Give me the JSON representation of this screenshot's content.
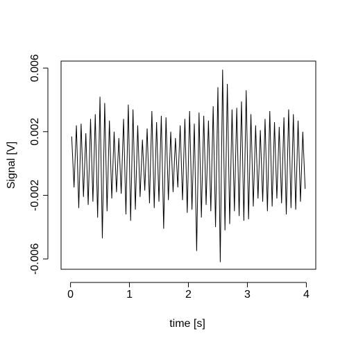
{
  "chart_data": {
    "type": "line",
    "xlabel": "time [s]",
    "ylabel": "Signal [V]",
    "x": [
      0.02,
      0.06,
      0.1,
      0.14,
      0.18,
      0.22,
      0.26,
      0.3,
      0.34,
      0.38,
      0.42,
      0.46,
      0.5,
      0.54,
      0.58,
      0.62,
      0.66,
      0.7,
      0.74,
      0.78,
      0.82,
      0.86,
      0.9,
      0.94,
      0.98,
      1.02,
      1.06,
      1.1,
      1.14,
      1.18,
      1.22,
      1.26,
      1.3,
      1.34,
      1.38,
      1.42,
      1.46,
      1.5,
      1.54,
      1.58,
      1.62,
      1.66,
      1.7,
      1.74,
      1.78,
      1.82,
      1.86,
      1.9,
      1.94,
      1.98,
      2.02,
      2.06,
      2.1,
      2.14,
      2.18,
      2.22,
      2.26,
      2.3,
      2.34,
      2.38,
      2.42,
      2.46,
      2.5,
      2.54,
      2.58,
      2.62,
      2.66,
      2.7,
      2.74,
      2.78,
      2.82,
      2.86,
      2.9,
      2.94,
      2.98,
      3.02,
      3.06,
      3.1,
      3.14,
      3.18,
      3.22,
      3.26,
      3.3,
      3.34,
      3.38,
      3.42,
      3.46,
      3.5,
      3.54,
      3.58,
      3.62,
      3.66,
      3.7,
      3.74,
      3.78,
      3.82,
      3.86,
      3.9,
      3.94,
      3.98
    ],
    "values": [
      0.0017,
      -0.0015,
      0.0024,
      -0.0028,
      0.0025,
      -0.0021,
      0.0019,
      -0.0026,
      0.0028,
      -0.0024,
      0.0031,
      -0.0034,
      0.0042,
      -0.0047,
      0.0038,
      -0.003,
      0.0027,
      -0.0022,
      0.002,
      -0.0018,
      0.0016,
      -0.0019,
      0.0028,
      -0.0032,
      0.0037,
      -0.0036,
      0.0034,
      -0.0029,
      0.0024,
      -0.0021,
      0.0015,
      -0.0017,
      0.0022,
      -0.0025,
      0.0033,
      -0.0028,
      0.0026,
      -0.0024,
      0.003,
      -0.0041,
      0.0029,
      -0.0023,
      0.002,
      -0.0018,
      0.0016,
      -0.0015,
      0.0024,
      -0.0023,
      0.0028,
      -0.0031,
      0.0033,
      -0.0029,
      0.0025,
      -0.0055,
      0.0032,
      -0.0034,
      0.003,
      -0.0026,
      0.0027,
      -0.003,
      0.0036,
      -0.004,
      0.0048,
      -0.0062,
      0.0059,
      -0.0042,
      0.005,
      -0.0038,
      0.0034,
      -0.003,
      0.0035,
      -0.0033,
      0.0039,
      -0.0036,
      0.0046,
      -0.0035,
      0.0031,
      -0.0027,
      0.0024,
      -0.0022,
      0.0021,
      -0.0024,
      0.0028,
      -0.003,
      0.0033,
      -0.0027,
      0.0026,
      -0.0022,
      0.0023,
      -0.0025,
      0.0029,
      -0.0032,
      0.0034,
      -0.0028,
      0.0031,
      -0.0029,
      0.0027,
      -0.0024,
      0.002,
      -0.0016
    ],
    "color": "#000000",
    "xlim": [
      -0.16,
      4.16
    ],
    "xticks": [
      0,
      1,
      2,
      3,
      4
    ],
    "ylim": [
      -0.00665,
      0.00644
    ],
    "yticks": [
      -0.006,
      -0.002,
      0.002,
      0.006
    ]
  }
}
